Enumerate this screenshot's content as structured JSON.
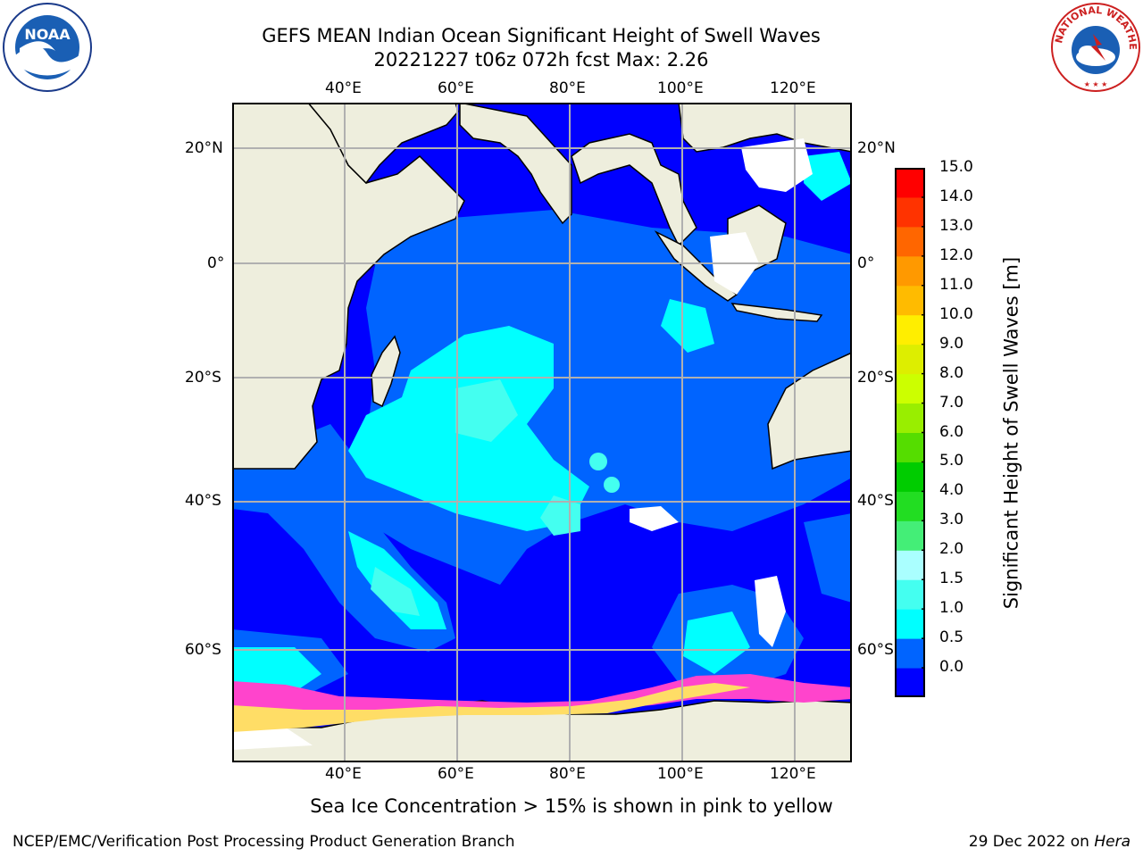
{
  "header": {
    "title_line1": "GEFS MEAN Indian Ocean Significant Height of Swell Waves",
    "title_line2": "20221227 t06z 072h fcst   Max: 2.26"
  },
  "logos": {
    "left": {
      "icon": "noaa-logo",
      "text": "NOAA"
    },
    "right": {
      "icon": "nws-logo",
      "text": "NATIONAL WEATHER SERVICE"
    }
  },
  "map": {
    "lon_ticks_top": [
      "40°E",
      "60°E",
      "80°E",
      "100°E",
      "120°E"
    ],
    "lon_ticks_bottom": [
      "40°E",
      "60°E",
      "80°E",
      "100°E",
      "120°E"
    ],
    "lat_ticks_left": [
      "20°N",
      "0°",
      "20°S",
      "40°S",
      "60°S"
    ],
    "lat_ticks_right": [
      "20°N",
      "0°",
      "20°S",
      "40°S",
      "60°S"
    ],
    "extent": {
      "lon": [
        20,
        130
      ],
      "lat": [
        -74,
        28
      ]
    },
    "colors": {
      "land": "#eeeedd",
      "ocean_low": "#0000ff",
      "ocean_mid": "#0064ff",
      "ocean_high": "#00ffff",
      "grid": "#b0b0b0"
    }
  },
  "colorbar": {
    "title": "Significant Height of Swell Waves [m]",
    "labels": [
      "15.0",
      "14.0",
      "13.0",
      "12.0",
      "11.0",
      "10.0",
      "9.0",
      "8.0",
      "7.0",
      "6.0",
      "5.0",
      "4.0",
      "3.0",
      "2.0",
      "1.5",
      "1.0",
      "0.5",
      "0.0"
    ],
    "colors": [
      "#0000ff",
      "#0064ff",
      "#00ffff",
      "#44fff0",
      "#aaffff",
      "#44ee77",
      "#22dd22",
      "#00cc00",
      "#55dd00",
      "#99ee00",
      "#ccff00",
      "#ddee00",
      "#ffee00",
      "#ffbb00",
      "#ff9900",
      "#ff6600",
      "#ff3300",
      "#ff0000"
    ]
  },
  "caption": "Sea Ice Concentration > 15% is shown in pink to yellow",
  "footer": {
    "left": "NCEP/EMC/Verification Post Processing Product Generation Branch",
    "right_date": "29 Dec 2022 on ",
    "right_machine": "Hera"
  }
}
